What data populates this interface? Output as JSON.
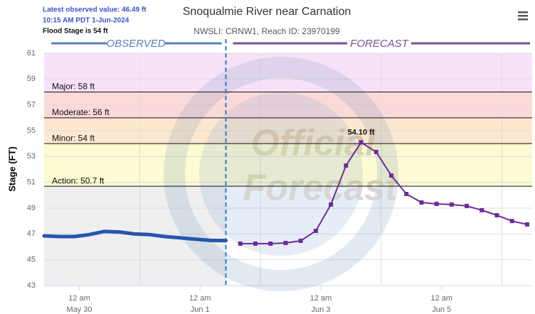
{
  "chart_data": {
    "type": "line",
    "title": "Snoqualmie River near Carnation",
    "subtitle": "NWSLI: CRNW1, Reach ID: 23970199",
    "info": [
      "Latest observed value: 46.49 ft",
      "10:15 AM PDT 1-Jun-2024",
      "Flood Stage is 54 ft"
    ],
    "ylabel": "Stage (FT)",
    "observed_label": "OBSERVED",
    "forecast_label": "FORECAST",
    "watermark": [
      "Official",
      "Forecast"
    ],
    "xlim": [
      -14,
      180
    ],
    "xticks": [
      {
        "value": 0,
        "label": "12 am",
        "date": "May 30"
      },
      {
        "value": 48,
        "label": "12 am",
        "date": "Jun 1"
      },
      {
        "value": 96,
        "label": "12 am",
        "date": "Jun 3"
      },
      {
        "value": 144,
        "label": "12 am",
        "date": "Jun 5"
      }
    ],
    "ylim": [
      43,
      61
    ],
    "yticks": [
      43,
      45,
      47,
      49,
      51,
      53,
      55,
      57,
      59,
      61
    ],
    "grid": true,
    "now_x": 58.25,
    "thresholds": [
      {
        "label": "Major: 58 ft",
        "value": 58,
        "color": "#f8e2f8"
      },
      {
        "label": "Moderate: 56 ft",
        "value": 56,
        "color": "#fcd9d9"
      },
      {
        "label": "Minor: 54 ft",
        "value": 54,
        "color": "#fde8cf"
      },
      {
        "label": "Action: 50.7 ft",
        "value": 50.7,
        "color": "#fdfbd2"
      }
    ],
    "series": [
      {
        "name": "Observed",
        "color": "#2456b0",
        "x": [
          -14,
          -8,
          -2,
          4,
          10,
          16,
          22,
          28,
          34,
          40,
          46,
          52,
          58.25
        ],
        "values": [
          46.85,
          46.8,
          46.8,
          46.95,
          47.2,
          47.15,
          47.0,
          46.95,
          46.8,
          46.7,
          46.6,
          46.5,
          46.49
        ]
      },
      {
        "name": "Forecast",
        "color": "#6a2d9a",
        "x": [
          64,
          70,
          76,
          82,
          88,
          94,
          100,
          106,
          112,
          118,
          124,
          130,
          136,
          142,
          148,
          154,
          160,
          166,
          172,
          178
        ],
        "values": [
          46.25,
          46.25,
          46.25,
          46.3,
          46.47,
          47.24,
          49.28,
          52.3,
          54.1,
          53.35,
          51.53,
          50.1,
          49.44,
          49.33,
          49.28,
          49.17,
          48.84,
          48.45,
          48.0,
          47.74
        ],
        "value_labels": [
          null,
          null,
          null,
          null,
          null,
          null,
          null,
          null,
          "54.10 ft",
          null,
          null,
          null,
          null,
          null,
          null,
          null,
          null,
          null,
          null,
          null
        ]
      }
    ]
  }
}
